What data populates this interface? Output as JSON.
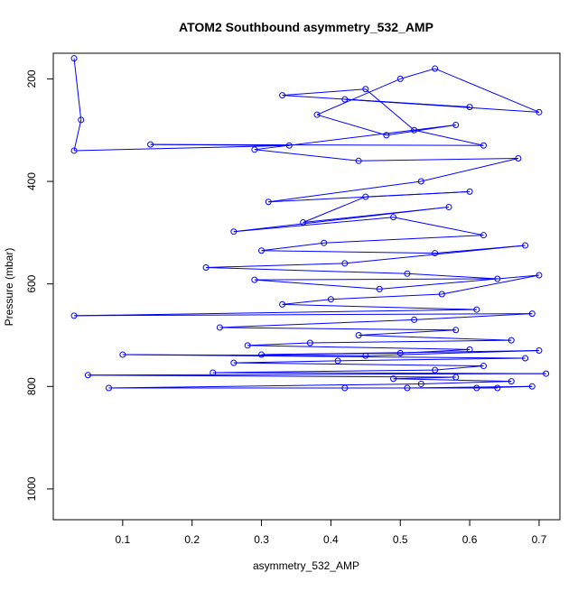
{
  "chart_data": {
    "type": "line",
    "title": "ATOM2 Southbound asymmetry_532_AMP",
    "xlabel": "asymmetry_532_AMP",
    "ylabel": "Pressure (mbar)",
    "xlim": [
      0.0,
      0.73
    ],
    "ylim": [
      150,
      1060
    ],
    "y_reversed": true,
    "x_ticks": [
      0.1,
      0.2,
      0.3,
      0.4,
      0.5,
      0.6,
      0.7
    ],
    "x_tick_labels": [
      "0.1",
      "0.2",
      "0.3",
      "0.4",
      "0.5",
      "0.6",
      "0.7"
    ],
    "y_ticks": [
      200,
      400,
      600,
      800,
      1000
    ],
    "y_tick_labels": [
      "200",
      "400",
      "600",
      "800",
      "1000"
    ],
    "grid": false,
    "series": [
      {
        "color": "#0000ff",
        "marker": "open-circle",
        "points": [
          [
            0.03,
            160
          ],
          [
            0.04,
            280
          ],
          [
            0.03,
            340
          ],
          [
            0.34,
            330
          ],
          [
            0.14,
            328
          ],
          [
            0.62,
            330
          ],
          [
            0.52,
            300
          ],
          [
            0.45,
            220
          ],
          [
            0.33,
            232
          ],
          [
            0.6,
            255
          ],
          [
            0.42,
            240
          ],
          [
            0.7,
            265
          ],
          [
            0.55,
            180
          ],
          [
            0.5,
            200
          ],
          [
            0.38,
            270
          ],
          [
            0.48,
            310
          ],
          [
            0.58,
            290
          ],
          [
            0.29,
            338
          ],
          [
            0.44,
            360
          ],
          [
            0.67,
            355
          ],
          [
            0.53,
            400
          ],
          [
            0.31,
            440
          ],
          [
            0.6,
            420
          ],
          [
            0.45,
            430
          ],
          [
            0.36,
            480
          ],
          [
            0.57,
            450
          ],
          [
            0.26,
            498
          ],
          [
            0.49,
            470
          ],
          [
            0.62,
            505
          ],
          [
            0.39,
            520
          ],
          [
            0.3,
            535
          ],
          [
            0.55,
            540
          ],
          [
            0.68,
            525
          ],
          [
            0.42,
            560
          ],
          [
            0.22,
            568
          ],
          [
            0.51,
            580
          ],
          [
            0.64,
            590
          ],
          [
            0.29,
            592
          ],
          [
            0.47,
            610
          ],
          [
            0.7,
            583
          ],
          [
            0.56,
            620
          ],
          [
            0.4,
            630
          ],
          [
            0.33,
            640
          ],
          [
            0.61,
            650
          ],
          [
            0.03,
            662
          ],
          [
            0.69,
            658
          ],
          [
            0.52,
            670
          ],
          [
            0.24,
            685
          ],
          [
            0.58,
            690
          ],
          [
            0.44,
            700
          ],
          [
            0.66,
            710
          ],
          [
            0.37,
            715
          ],
          [
            0.28,
            720
          ],
          [
            0.6,
            728
          ],
          [
            0.5,
            735
          ],
          [
            0.3,
            738
          ],
          [
            0.7,
            730
          ],
          [
            0.45,
            740
          ],
          [
            0.1,
            738
          ],
          [
            0.68,
            745
          ],
          [
            0.41,
            750
          ],
          [
            0.26,
            754
          ],
          [
            0.62,
            760
          ],
          [
            0.55,
            768
          ],
          [
            0.23,
            773
          ],
          [
            0.71,
            775
          ],
          [
            0.05,
            778
          ],
          [
            0.58,
            782
          ],
          [
            0.49,
            785
          ],
          [
            0.66,
            790
          ],
          [
            0.53,
            795
          ],
          [
            0.08,
            803
          ],
          [
            0.42,
            803
          ],
          [
            0.61,
            803
          ],
          [
            0.69,
            800
          ],
          [
            0.51,
            803
          ],
          [
            0.64,
            803
          ]
        ]
      }
    ]
  }
}
